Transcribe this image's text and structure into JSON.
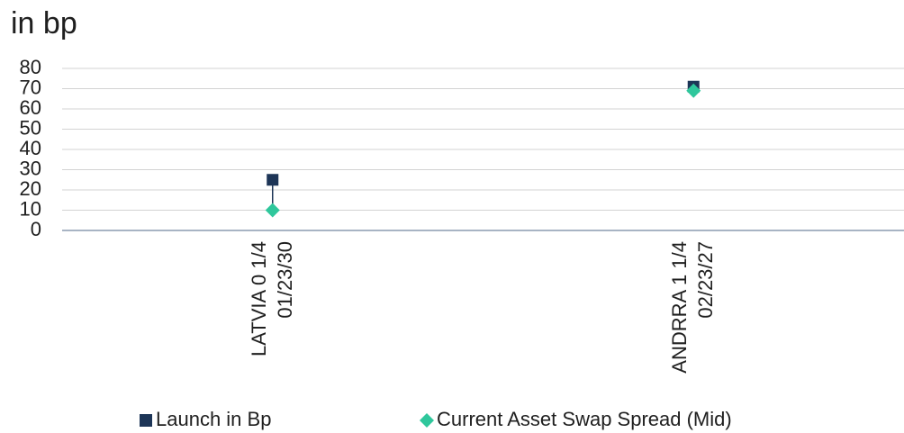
{
  "chart_data": {
    "type": "dot",
    "title": "in bp",
    "categories": [
      "LATVIA 0 1/4 01/23/30",
      "ANDRRA 1 1/4 02/23/27"
    ],
    "series": [
      {
        "name": "Launch in Bp",
        "color": "#1d3557",
        "marker": "square",
        "values": [
          25,
          71
        ]
      },
      {
        "name": "Current Asset Swap Spread (Mid)",
        "color": "#2fc79c",
        "marker": "diamond",
        "values": [
          10,
          69
        ]
      }
    ],
    "ylim": [
      0,
      80
    ],
    "yticks": [
      0,
      10,
      20,
      30,
      40,
      50,
      60,
      70,
      80
    ],
    "grid": true,
    "legend": "bottom"
  }
}
